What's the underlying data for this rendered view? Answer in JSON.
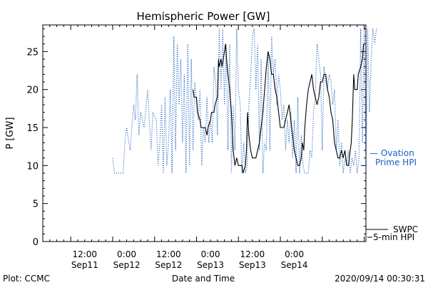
{
  "chart_data": {
    "type": "line",
    "title": "Hemispheric Power [GW]",
    "ylabel": "P [GW]",
    "xlabel": "Date and Time",
    "ylim": [
      0,
      28.5
    ],
    "xlim_hours": [
      -20,
      60
    ],
    "yticks": [
      0,
      5,
      10,
      15,
      20,
      25
    ],
    "xticks": [
      {
        "h": 12,
        "top": "12:00",
        "bottom": "Sep11"
      },
      {
        "h": 24,
        "top": "0:00",
        "bottom": "Sep12"
      },
      {
        "h": 36,
        "top": "12:00",
        "bottom": "Sep12"
      },
      {
        "h": 48,
        "top": "0:00",
        "bottom": "Sep13"
      },
      {
        "h": 60,
        "top": "12:00",
        "bottom": "Sep13"
      },
      {
        "h": 72,
        "top": "0:00",
        "bottom": "Sep14"
      }
    ],
    "series": [
      {
        "name": "Ovation Prime HPI",
        "style": "dotted",
        "color": "#1a5fbf",
        "points": [
          [
            0,
            11
          ],
          [
            0.5,
            9
          ],
          [
            3,
            9
          ],
          [
            3.5,
            13
          ],
          [
            4,
            15
          ],
          [
            5,
            12
          ],
          [
            6,
            18
          ],
          [
            6.5,
            16
          ],
          [
            7,
            22
          ],
          [
            7.5,
            14
          ],
          [
            8,
            17
          ],
          [
            9,
            15
          ],
          [
            10,
            20
          ],
          [
            11,
            12
          ],
          [
            11.5,
            17
          ],
          [
            12.5,
            16
          ],
          [
            13,
            10
          ],
          [
            13.5,
            13
          ],
          [
            14,
            18
          ],
          [
            14.5,
            9
          ],
          [
            15,
            19
          ],
          [
            15.5,
            10
          ],
          [
            16,
            13
          ],
          [
            16.5,
            20
          ],
          [
            17,
            9
          ],
          [
            17.5,
            27
          ],
          [
            18,
            12
          ],
          [
            18.5,
            26
          ],
          [
            19,
            18
          ],
          [
            19.5,
            24
          ],
          [
            20,
            13
          ],
          [
            20.5,
            22
          ],
          [
            21,
            9
          ],
          [
            21.5,
            26
          ],
          [
            22,
            10
          ],
          [
            22.5,
            24
          ],
          [
            23,
            12
          ],
          [
            23.5,
            21
          ],
          [
            24,
            18
          ],
          [
            24.5,
            16
          ],
          [
            25,
            20
          ],
          [
            25.5,
            10
          ],
          [
            26,
            15
          ],
          [
            26.5,
            13
          ],
          [
            27,
            19
          ],
          [
            27.5,
            13
          ],
          [
            28,
            16
          ],
          [
            28.5,
            13
          ],
          [
            29,
            23
          ],
          [
            29.5,
            21
          ],
          [
            30,
            14
          ],
          [
            30.5,
            28
          ],
          [
            31,
            20
          ],
          [
            31.5,
            28
          ],
          [
            32,
            18
          ],
          [
            32.5,
            26
          ],
          [
            33,
            12
          ],
          [
            33.5,
            26
          ],
          [
            34,
            9
          ],
          [
            34.5,
            18
          ],
          [
            35,
            12
          ],
          [
            35.5,
            28
          ],
          [
            36,
            20
          ],
          [
            36.5,
            18
          ],
          [
            37,
            9
          ],
          [
            37.5,
            13
          ],
          [
            38,
            9
          ],
          [
            38.5,
            10
          ],
          [
            39,
            18
          ],
          [
            39.5,
            22
          ],
          [
            40,
            27
          ],
          [
            40.5,
            28
          ],
          [
            41,
            20
          ],
          [
            41.5,
            26
          ],
          [
            42,
            12
          ],
          [
            42.5,
            24
          ],
          [
            43,
            9
          ],
          [
            43.5,
            13
          ],
          [
            44,
            12
          ],
          [
            44.5,
            25
          ],
          [
            45,
            12
          ],
          [
            45.5,
            27
          ],
          [
            46,
            22
          ],
          [
            46.5,
            24
          ],
          [
            47,
            18
          ],
          [
            47.5,
            22
          ],
          [
            48,
            20
          ],
          [
            48.5,
            16
          ],
          [
            49,
            18
          ],
          [
            49.5,
            12
          ],
          [
            50,
            16
          ],
          [
            50.5,
            13
          ],
          [
            51,
            17
          ],
          [
            51.5,
            11
          ],
          [
            52,
            16
          ],
          [
            52.5,
            9
          ],
          [
            53,
            19
          ],
          [
            53.5,
            9
          ],
          [
            54,
            14
          ],
          [
            54.5,
            10
          ],
          [
            55,
            9
          ],
          [
            56,
            9
          ],
          [
            56.5,
            12
          ],
          [
            57,
            11
          ],
          [
            57.5,
            17
          ],
          [
            58,
            19
          ],
          [
            58.5,
            26
          ],
          [
            59,
            24
          ],
          [
            59.5,
            22
          ],
          [
            60,
            12
          ],
          [
            60.5,
            23
          ],
          [
            61,
            21
          ],
          [
            61.5,
            20
          ],
          [
            62,
            22
          ],
          [
            62.5,
            21
          ],
          [
            63,
            18
          ],
          [
            63.5,
            20
          ],
          [
            64,
            12
          ],
          [
            64.5,
            16
          ],
          [
            65,
            10
          ],
          [
            65.5,
            13
          ],
          [
            66,
            9
          ],
          [
            66.5,
            11
          ],
          [
            67,
            10
          ],
          [
            67.5,
            12
          ],
          [
            68,
            9
          ],
          [
            68.5,
            11
          ],
          [
            69,
            10
          ],
          [
            69.5,
            12
          ],
          [
            70,
            9
          ],
          [
            70.5,
            11
          ],
          [
            71,
            28
          ],
          [
            71.5,
            13
          ],
          [
            72,
            28
          ],
          [
            72.5,
            9
          ],
          [
            73,
            28
          ],
          [
            73.5,
            17
          ],
          [
            74,
            24
          ],
          [
            74.5,
            28
          ],
          [
            75,
            26
          ],
          [
            75.5,
            28
          ]
        ]
      },
      {
        "name": "SWPC 5-min HPI",
        "style": "solid",
        "color": "#000000",
        "points": [
          [
            23,
            20
          ],
          [
            23.3,
            19
          ],
          [
            24,
            19
          ],
          [
            24.3,
            17
          ],
          [
            25,
            16
          ],
          [
            25.3,
            15
          ],
          [
            26,
            15
          ],
          [
            26.5,
            15
          ],
          [
            27,
            14
          ],
          [
            27.3,
            15
          ],
          [
            28,
            16
          ],
          [
            28.3,
            17
          ],
          [
            29,
            17
          ],
          [
            29.3,
            18
          ],
          [
            30,
            19
          ],
          [
            30.3,
            24
          ],
          [
            30.5,
            23
          ],
          [
            31,
            24
          ],
          [
            31.3,
            23
          ],
          [
            32,
            25
          ],
          [
            32.3,
            26
          ],
          [
            32.6,
            24
          ],
          [
            33,
            22
          ],
          [
            33.5,
            20
          ],
          [
            34,
            17
          ],
          [
            34.5,
            12
          ],
          [
            35,
            10
          ],
          [
            35.5,
            11
          ],
          [
            36,
            10
          ],
          [
            37,
            10
          ],
          [
            37.3,
            9
          ],
          [
            38,
            10
          ],
          [
            38.3,
            12
          ],
          [
            38.6,
            17
          ],
          [
            39,
            14
          ],
          [
            39.5,
            12
          ],
          [
            40,
            11
          ],
          [
            41,
            11
          ],
          [
            41.5,
            12
          ],
          [
            42,
            13
          ],
          [
            42.5,
            15
          ],
          [
            43,
            17
          ],
          [
            43.5,
            20
          ],
          [
            44,
            23
          ],
          [
            44.5,
            25
          ],
          [
            45,
            24
          ],
          [
            45.5,
            22
          ],
          [
            46,
            22
          ],
          [
            46.5,
            20
          ],
          [
            47,
            19
          ],
          [
            47.5,
            17
          ],
          [
            48,
            15
          ],
          [
            48.5,
            15
          ],
          [
            49,
            15
          ],
          [
            49.5,
            16
          ],
          [
            50,
            17
          ],
          [
            50.5,
            18
          ],
          [
            51,
            16
          ],
          [
            51.5,
            14
          ],
          [
            52,
            12
          ],
          [
            52.5,
            11
          ],
          [
            53,
            10
          ],
          [
            53.5,
            10
          ],
          [
            54,
            11
          ],
          [
            54.3,
            13
          ],
          [
            54.7,
            12
          ],
          [
            55,
            15
          ],
          [
            55.5,
            18
          ],
          [
            56,
            20
          ],
          [
            56.5,
            21
          ],
          [
            57,
            22
          ],
          [
            57.5,
            20
          ],
          [
            58,
            19
          ],
          [
            58.5,
            18
          ],
          [
            59,
            19
          ],
          [
            59.5,
            21
          ],
          [
            60,
            21
          ],
          [
            60.5,
            22
          ],
          [
            61,
            22
          ],
          [
            61.5,
            20
          ],
          [
            62,
            19
          ],
          [
            62.5,
            17
          ],
          [
            63,
            16
          ],
          [
            63.5,
            13
          ],
          [
            64,
            12
          ],
          [
            64.5,
            11
          ],
          [
            65,
            11
          ],
          [
            65.5,
            12
          ],
          [
            66,
            11
          ],
          [
            66.5,
            12
          ],
          [
            67,
            10
          ],
          [
            67.5,
            10
          ],
          [
            68,
            12
          ],
          [
            68.3,
            13
          ],
          [
            68.6,
            16
          ],
          [
            69,
            22
          ],
          [
            69.3,
            20
          ],
          [
            70,
            20
          ],
          [
            70.3,
            22
          ],
          [
            71,
            23
          ],
          [
            71.5,
            24
          ],
          [
            71.8,
            26
          ]
        ]
      }
    ]
  },
  "legend": {
    "blue_line1": "— Ovation",
    "blue_line2": "Prime HPI",
    "black_line1": "SWPC",
    "black_line2": "5-min HPI"
  },
  "footer": {
    "left": "Plot: CCMC",
    "center": "Date and Time",
    "right": "2020/09/14 00:30:31"
  }
}
